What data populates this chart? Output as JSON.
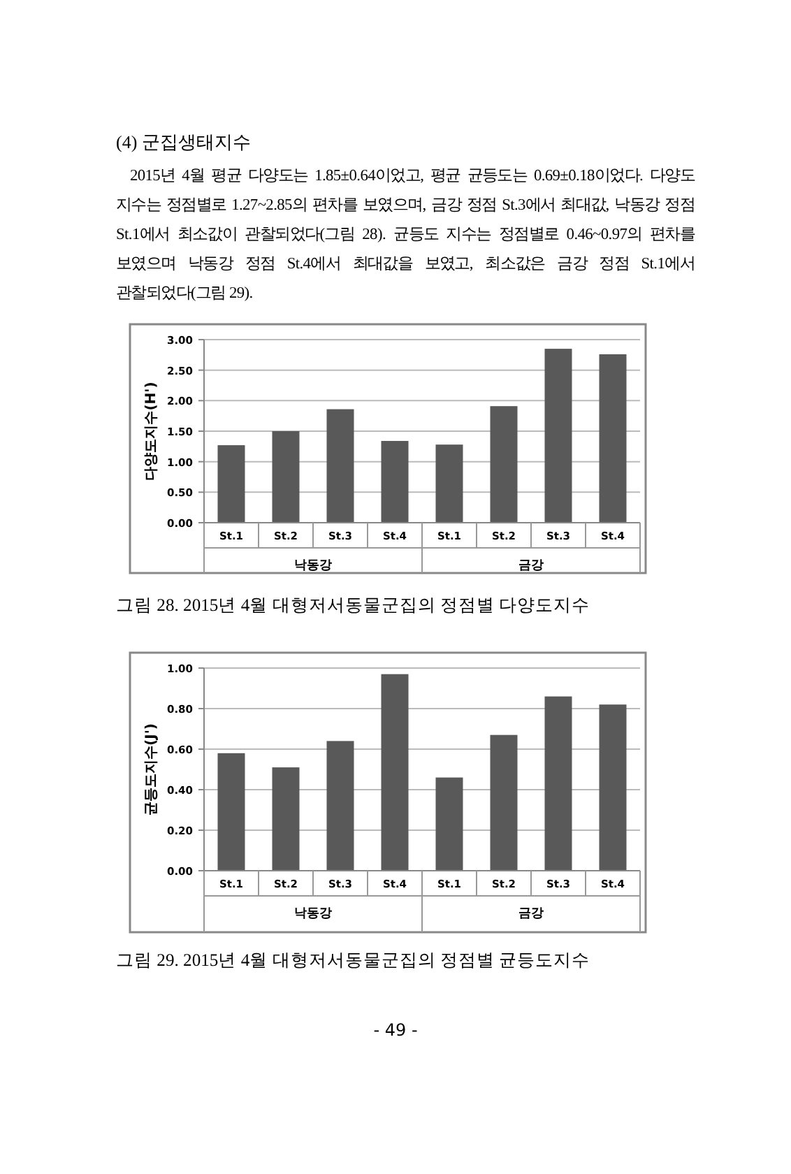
{
  "chart_data": [
    {
      "type": "bar",
      "title": "(4) 군집생태지수",
      "subtitle": "2015년 4월 평균 다양도는 1.85±0.64이었고, 평균 균등도는 0.69±0.18이었다. 다양도 지수는 정점별로 1.27~2.85의 편차를 보였으며, 금강 정점 St.3에서 최대값, 낙동강 정점 St.1에서 최소값이 관찰되었다(그림 28). 균등도 지수는 정점별로 0.46~0.97의 편차를 보였으며 낙동강 정점 St.4에서 최대값을 보였고, 최소값은 금강 정점 St.1에서 관찰되었다(그림 29).",
      "ylabel": "다양도지수(H')",
      "categories": [
        "St.1",
        "St.2",
        "St.3",
        "St.4",
        "St.1",
        "St.2",
        "St.3",
        "St.4"
      ],
      "values": [
        1.27,
        1.5,
        1.86,
        1.34,
        1.28,
        1.91,
        2.85,
        2.76
      ],
      "color": "#595959",
      "ylim": [
        0,
        3
      ],
      "yticks": [
        {
          "value": 0,
          "label": "0.00"
        },
        {
          "value": 0.5,
          "label": "0.50"
        },
        {
          "value": 1,
          "label": "1.00"
        },
        {
          "value": 1.5,
          "label": "1.50"
        },
        {
          "value": 2,
          "label": "2.00"
        },
        {
          "value": 2.5,
          "label": "2.50"
        },
        {
          "value": 3,
          "label": "3.00"
        }
      ],
      "grid": "y",
      "annotations": [
        "낙동강",
        "금강",
        "그림 28. 2015년 4월 대형저서동물군집의 정점별 다양도지수"
      ]
    },
    {
      "type": "bar",
      "ylabel": "균등도지수(J')",
      "categories": [
        "St.1",
        "St.2",
        "St.3",
        "St.4",
        "St.1",
        "St.2",
        "St.3",
        "St.4"
      ],
      "values": [
        0.58,
        0.51,
        0.64,
        0.97,
        0.46,
        0.67,
        0.86,
        0.82
      ],
      "color": "#595959",
      "ylim": [
        0,
        1
      ],
      "yticks": [
        {
          "value": 0,
          "label": "0.00"
        },
        {
          "value": 0.2,
          "label": "0.20"
        },
        {
          "value": 0.4,
          "label": "0.40"
        },
        {
          "value": 0.6,
          "label": "0.60"
        },
        {
          "value": 0.8,
          "label": "0.80"
        },
        {
          "value": 1,
          "label": "1.00"
        }
      ],
      "grid": "y",
      "annotations": [
        "낙동강",
        "금강",
        "그림 29. 2015년 4월 대형저서동물군집의 정점별 균등도지수",
        "- 49 -"
      ]
    }
  ]
}
